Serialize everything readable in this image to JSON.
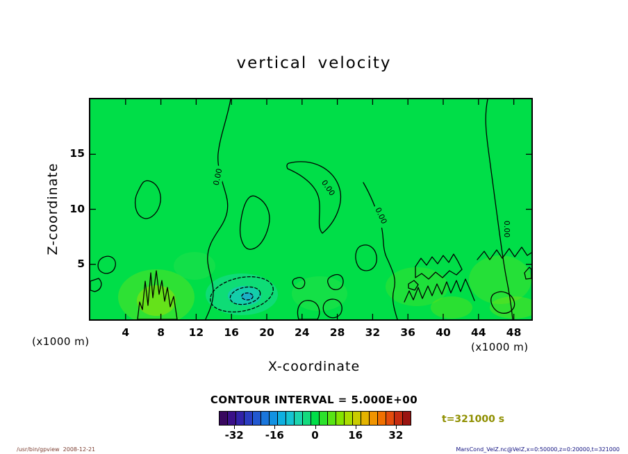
{
  "title": "vertical velocity",
  "axes": {
    "x_label": "X-coordinate",
    "y_label": "Z-coordinate",
    "x_unit_left": "(x1000 m)",
    "x_unit_right": "(x1000 m)",
    "x_ticks": [
      "4",
      "8",
      "12",
      "16",
      "20",
      "24",
      "28",
      "32",
      "36",
      "40",
      "44",
      "48"
    ],
    "y_ticks": [
      "5",
      "10",
      "15"
    ]
  },
  "contour": {
    "interval_label": "CONTOUR INTERVAL = 5.000E+00",
    "zero_label": "0.00"
  },
  "colorbar": {
    "tick_labels": [
      "-32",
      "-16",
      "0",
      "16",
      "32"
    ],
    "colors": [
      "#38075e",
      "#3a1088",
      "#3222a8",
      "#2a3cc0",
      "#2258d0",
      "#1a76dc",
      "#1292e2",
      "#0fb0e0",
      "#16c4d2",
      "#1cd4ae",
      "#14da7e",
      "#00de48",
      "#2ce22c",
      "#58e414",
      "#84e400",
      "#aadc00",
      "#cacc00",
      "#e4b400",
      "#f09400",
      "#f07000",
      "#e44c0c",
      "#c62c10",
      "#9a1410"
    ]
  },
  "time_label": "t=321000 s",
  "footer": {
    "left": "/usr/bin/gpview  2008-12-21",
    "right": "MarsCond_VelZ.nc@VelZ,x=0:50000,z=0:20000,t=321000"
  },
  "colors": {
    "field_green": "#00de48",
    "time_label": "#8f8f00",
    "footer_left": "#7a3b2e",
    "footer_right": "#101080"
  },
  "chart_data": {
    "type": "heatmap",
    "title": "vertical velocity",
    "xlabel": "X-coordinate (x1000 m)",
    "ylabel": "Z-coordinate (x1000 m)",
    "xlim": [
      0,
      50
    ],
    "ylim": [
      0,
      20
    ],
    "x_ticks": [
      4,
      8,
      12,
      16,
      20,
      24,
      28,
      32,
      36,
      40,
      44,
      48
    ],
    "y_ticks": [
      5,
      10,
      15
    ],
    "contour_interval": 5.0,
    "labeled_contour_value": 0.0,
    "colorbar_ticks": [
      -32,
      -16,
      0,
      16,
      32
    ],
    "time_seconds": 321000,
    "field_summary": "Vertical velocity is approximately 0 (green) over nearly the entire x=0-50 km, z=0-20 km domain. Zero contours (0.00) descend from the top boundary near x=13, 24, 33 and 44 km. A weak negative pocket (nested dashed contours with cyan shading) sits near x=16 km, z=2 km; patchy weak positive (yellow-green) spots and small jagged zero contours line the bottom boundary, especially near x=6-10 km and x=36-50 km."
  }
}
